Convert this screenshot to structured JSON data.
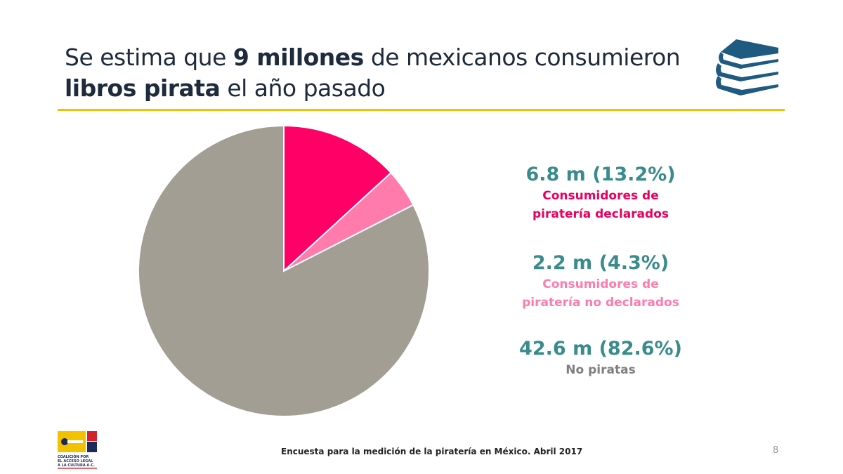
{
  "title": {
    "part1": "Se estima que ",
    "bold1": "9 millones",
    "part2": " de mexicanos consumieron",
    "bold2": "libros pirata",
    "part3": " el año pasado"
  },
  "icons": {
    "header": "books-stack-icon",
    "logo": "coalicion-logo"
  },
  "logo_text": "COALICIÓN POR EL ACCESO LEGAL A LA CULTURA A.C.",
  "chart_data": {
    "type": "pie",
    "start": "12 o'clock, clockwise",
    "slices": [
      {
        "label": "Consumidores de piratería declarados",
        "value_text": "6.8 m (13.2%)",
        "millions": 6.8,
        "percent": 13.2,
        "color": "#ff0066"
      },
      {
        "label": "Consumidores de piratería no declarados",
        "value_text": "2.2 m (4.3%)",
        "millions": 2.2,
        "percent": 4.3,
        "color": "#ff7bac"
      },
      {
        "label": "No piratas",
        "value_text": "42.6 m (82.6%)",
        "millions": 42.6,
        "percent": 82.6,
        "color": "#a39e93"
      }
    ],
    "legend": {
      "placement": "right",
      "label_lines": [
        [
          "Consumidores de",
          "piratería declarados"
        ],
        [
          "Consumidores de",
          "piratería no declarados"
        ],
        [
          "No piratas"
        ]
      ],
      "label_colors": [
        "#e8005e",
        "#ff7bac",
        "#7f7f7f"
      ],
      "value_color": "#3a8c8c"
    }
  },
  "footer": "Encuesta para la medición de la piratería en México. Abril 2017",
  "page_number": "8"
}
